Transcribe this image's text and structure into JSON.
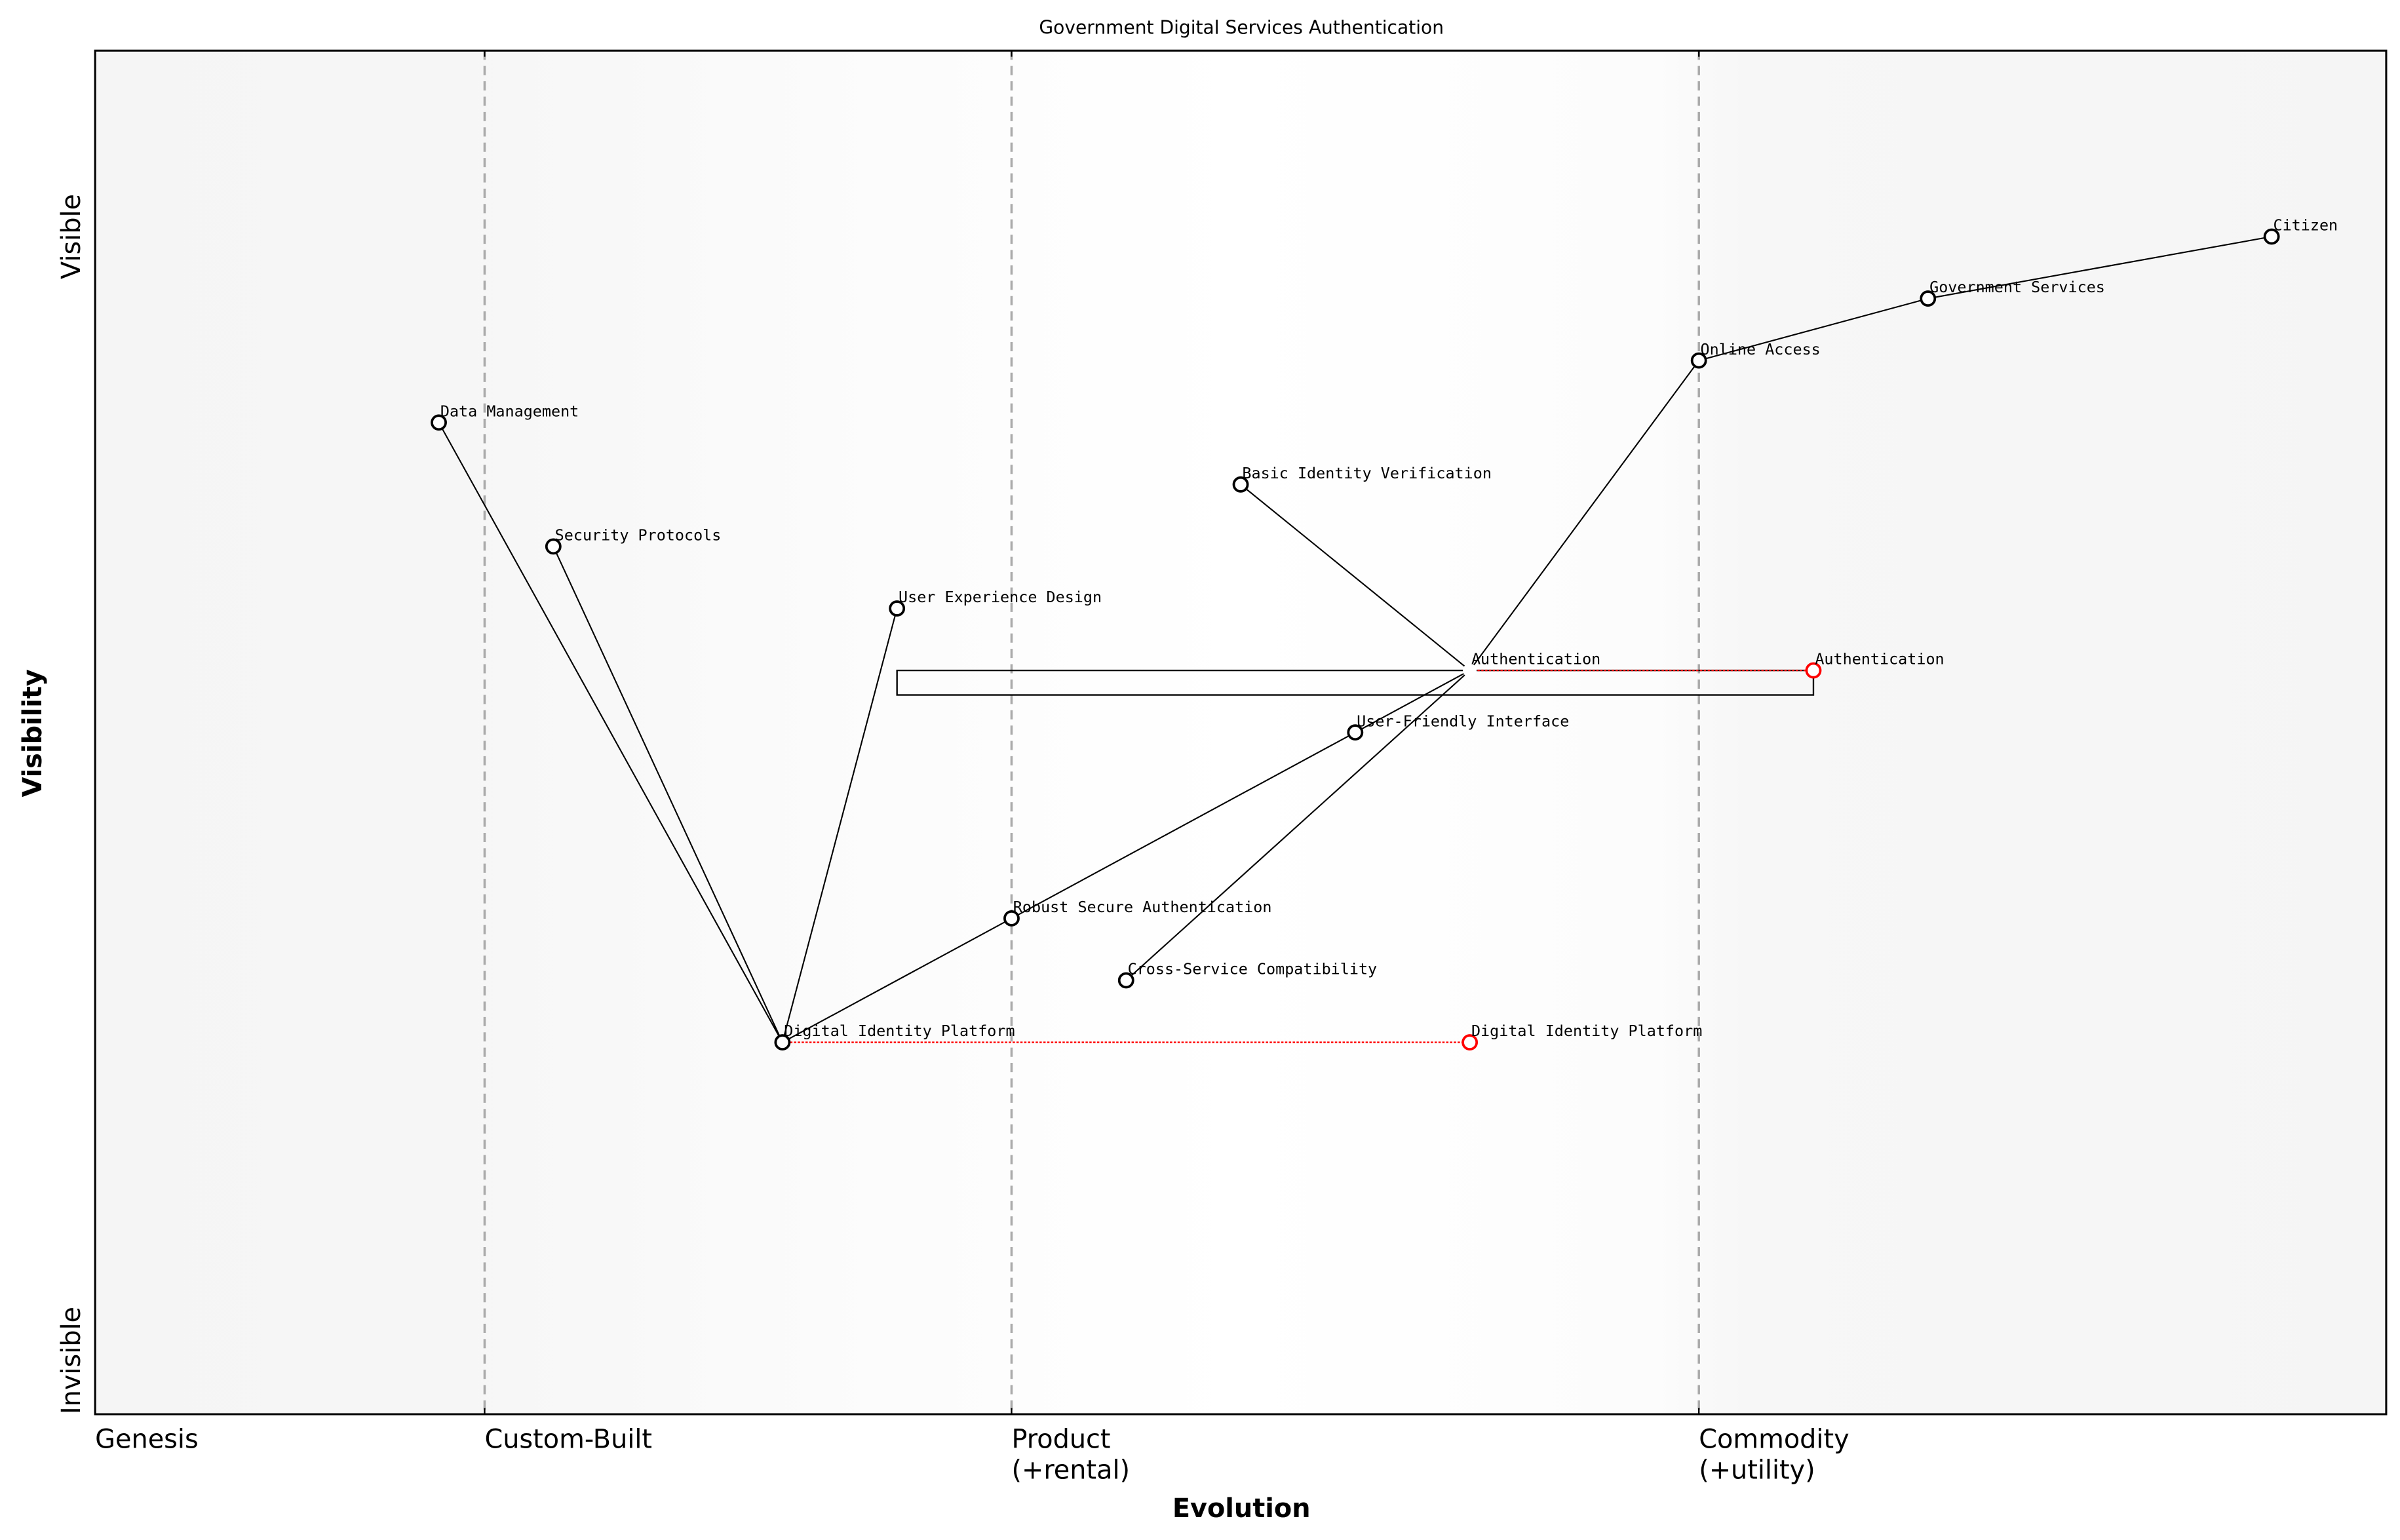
{
  "chart_data": {
    "type": "scatter",
    "title": "Government Digital Services Authentication",
    "xlabel": "Evolution",
    "ylabel": "Visibility",
    "xlim": [
      0,
      1
    ],
    "ylim": [
      0,
      1.1
    ],
    "x_tick_labels": [
      {
        "value": 0,
        "label": "Genesis"
      },
      {
        "value": 0.17,
        "label": "Custom-Built"
      },
      {
        "value": 0.4,
        "label": "Product\n(+rental)"
      },
      {
        "value": 0.7,
        "label": "Commodity\n(+utility)"
      }
    ],
    "y_tick_labels": [
      {
        "value": 0.95,
        "label": "Visible"
      },
      {
        "value": 0,
        "label": "Invisible"
      }
    ],
    "stage_boundaries": [
      0.17,
      0.4,
      0.7
    ],
    "components": [
      {
        "name": "Citizen",
        "x": 0.95,
        "y": 0.95
      },
      {
        "name": "Government Services",
        "x": 0.8,
        "y": 0.9
      },
      {
        "name": "Online Access",
        "x": 0.7,
        "y": 0.85
      },
      {
        "name": "Data Management",
        "x": 0.15,
        "y": 0.8
      },
      {
        "name": "Basic Identity Verification",
        "x": 0.5,
        "y": 0.75
      },
      {
        "name": "Security Protocols",
        "x": 0.2,
        "y": 0.7
      },
      {
        "name": "User Experience Design",
        "x": 0.35,
        "y": 0.65
      },
      {
        "name": "Authentication",
        "x": 0.6,
        "y": 0.6,
        "hidden_marker": true
      },
      {
        "name": "User-Friendly Interface",
        "x": 0.55,
        "y": 0.55
      },
      {
        "name": "Robust Secure Authentication",
        "x": 0.4,
        "y": 0.4
      },
      {
        "name": "Cross-Service Compatibility",
        "x": 0.45,
        "y": 0.35
      },
      {
        "name": "Digital Identity Platform",
        "x": 0.3,
        "y": 0.3
      }
    ],
    "evolved_components": [
      {
        "name": "Authentication",
        "x": 0.75,
        "y": 0.6
      },
      {
        "name": "Digital Identity Platform",
        "x": 0.6,
        "y": 0.3
      }
    ],
    "links": [
      [
        "Citizen",
        "Government Services"
      ],
      [
        "Government Services",
        "Online Access"
      ],
      [
        "Online Access",
        "Authentication"
      ],
      [
        "Authentication",
        "Basic Identity Verification"
      ],
      [
        "Authentication",
        "User-Friendly Interface"
      ],
      [
        "Authentication",
        "Cross-Service Compatibility"
      ],
      [
        "User-Friendly Interface",
        "Robust Secure Authentication"
      ],
      [
        "Robust Secure Authentication",
        "Digital Identity Platform"
      ],
      [
        "Digital Identity Platform",
        "Data Management"
      ],
      [
        "Digital Identity Platform",
        "Security Protocols"
      ],
      [
        "Digital Identity Platform",
        "User Experience Design"
      ]
    ],
    "pipelines": [
      {
        "name": "Authentication",
        "x_start": 0.35,
        "x_end": 0.75,
        "y": 0.6
      }
    ],
    "colors": {
      "component": "#000000",
      "evolved": "#ff0000",
      "stage_line": "#aaaaaa",
      "background_edge": "#f5f5f5",
      "background_center": "#ffffff"
    },
    "grid": false,
    "legend": "none"
  }
}
